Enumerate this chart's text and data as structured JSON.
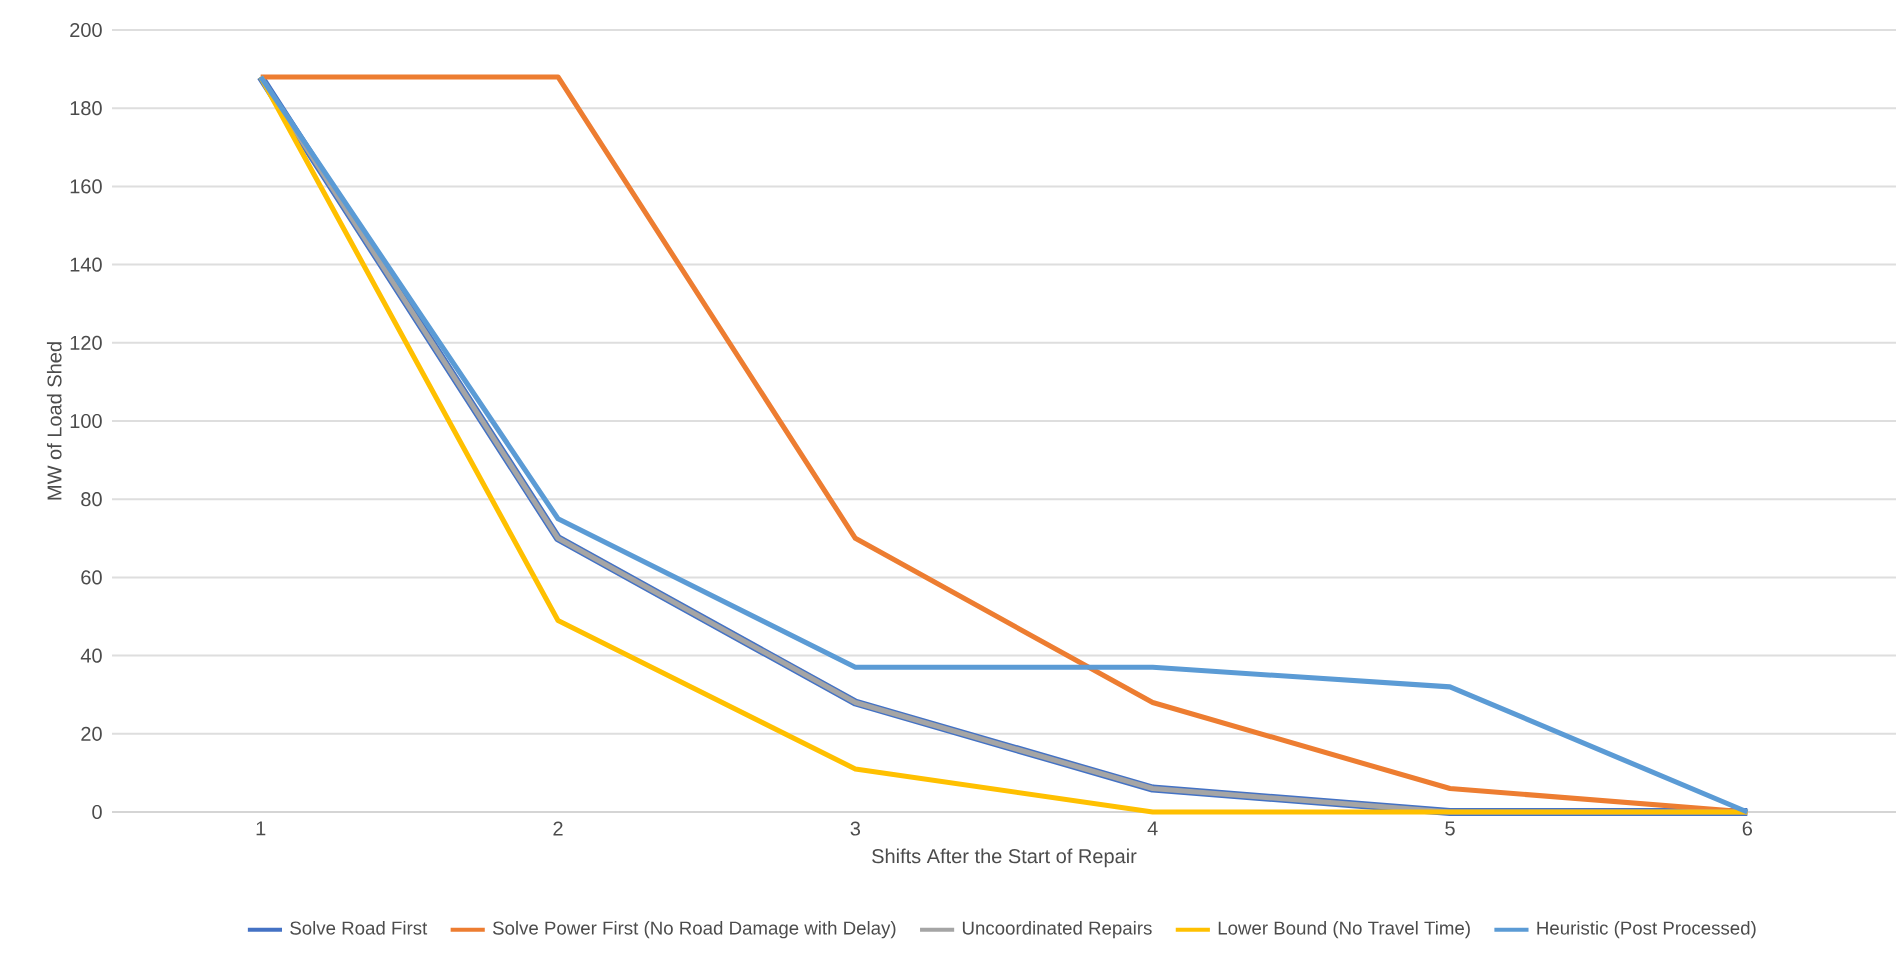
{
  "chart_data": {
    "type": "line",
    "xlabel": "Shifts After the Start of Repair",
    "ylabel": "MW of Load Shed",
    "categories": [
      "1",
      "2",
      "3",
      "4",
      "5",
      "6"
    ],
    "series": [
      {
        "name": "Solve Road First",
        "color": "#4472c4",
        "values": [
          188,
          70,
          28,
          6,
          0,
          0
        ]
      },
      {
        "name": "Solve Power First (No Road Damage with Delay)",
        "color": "#ed7d31",
        "values": [
          188,
          188,
          70,
          28,
          6,
          0
        ]
      },
      {
        "name": "Uncoordinated Repairs",
        "color": "#a5a5a5",
        "values": [
          188,
          70,
          28,
          6,
          0,
          0
        ]
      },
      {
        "name": "Lower Bound (No Travel Time)",
        "color": "#ffc000",
        "values": [
          188,
          49,
          11,
          0,
          0,
          0
        ]
      },
      {
        "name": "Heuristic (Post Processed)",
        "color": "#5b9bd5",
        "values": [
          188,
          75,
          37,
          37,
          32,
          0
        ]
      }
    ],
    "ylim": [
      0,
      200
    ],
    "yticks": [
      0,
      20,
      40,
      60,
      80,
      100,
      120,
      140,
      160,
      180,
      200
    ],
    "grid": "y",
    "legend": "bottom",
    "marker": "none",
    "line_style": "solid"
  }
}
